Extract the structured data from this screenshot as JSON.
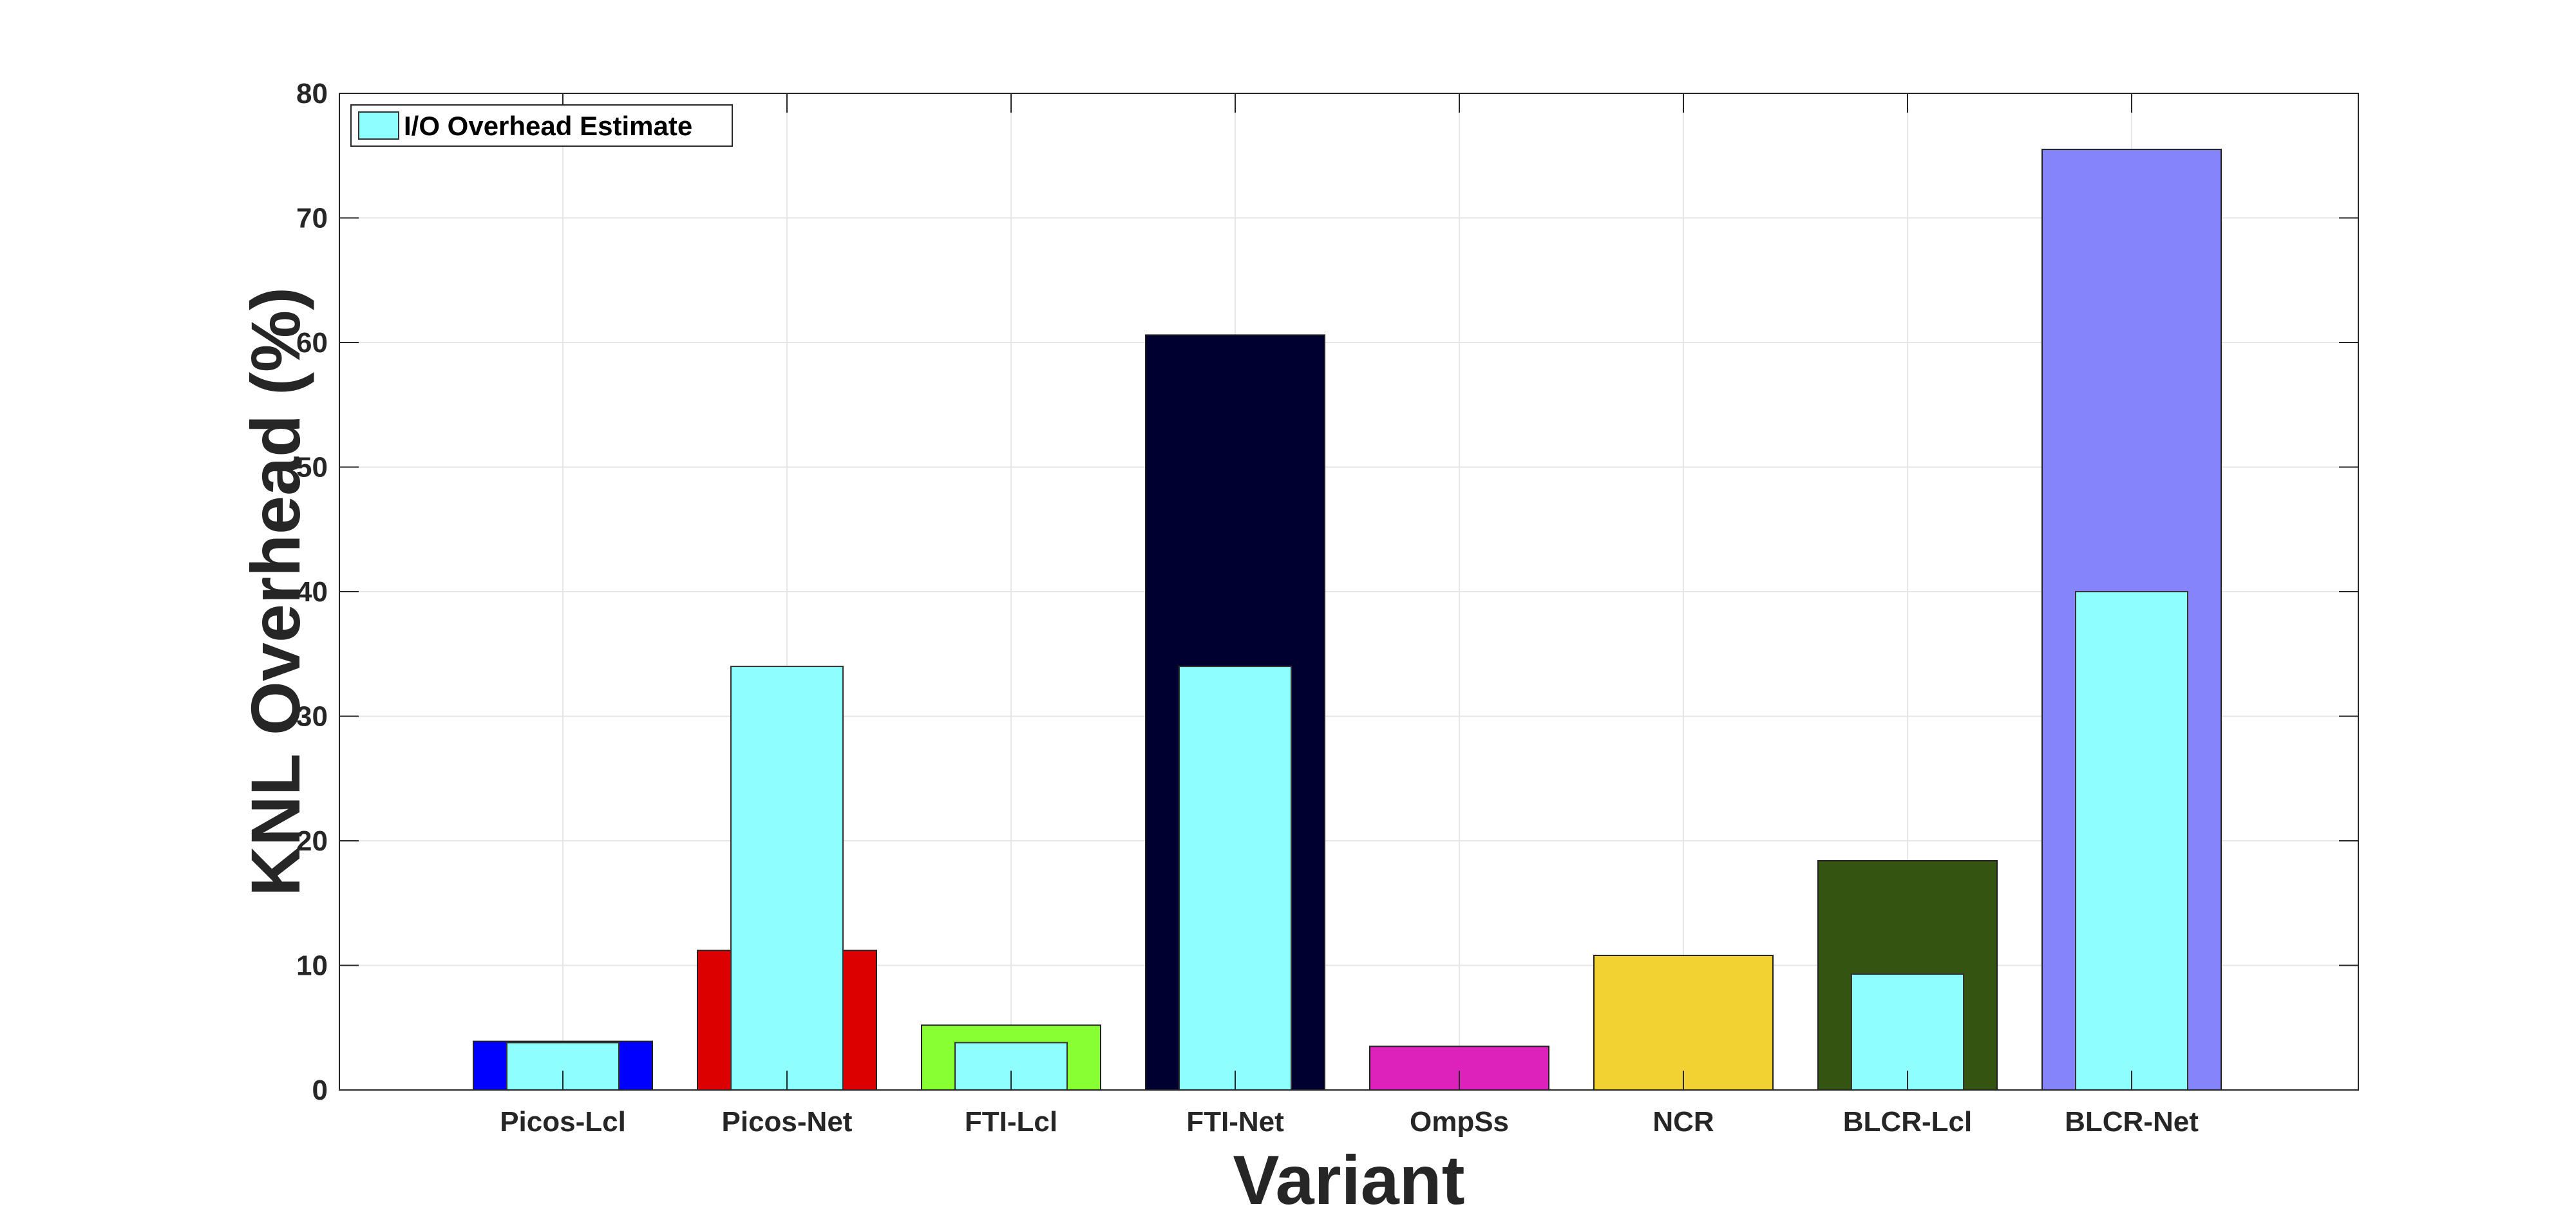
{
  "chart_data": {
    "type": "bar",
    "categories": [
      "Picos-Lcl",
      "Picos-Net",
      "FTI-Lcl",
      "FTI-Net",
      "OmpSs",
      "NCR",
      "BLCR-Lcl",
      "BLCR-Net"
    ],
    "series": [
      {
        "values": [
          3.9,
          11.2,
          5.2,
          60.6,
          3.5,
          10.8,
          18.4,
          75.5
        ],
        "colors": [
          "#0000ff",
          "#dd0000",
          "#88ff33",
          "#000030",
          "#dd22bb",
          "#f2d233",
          "#335511",
          "#8585f9"
        ]
      },
      {
        "name": "I/O Overhead Estimate",
        "values": [
          3.8,
          34.0,
          3.8,
          34.0,
          null,
          null,
          9.3,
          40.0
        ],
        "color": "#8ffefe"
      }
    ],
    "title": "",
    "xlabel": "Variant",
    "ylabel": "KNL Overhead (%)",
    "ylim": [
      0,
      80
    ],
    "yticks": [
      "0",
      "10",
      "20",
      "30",
      "40",
      "50",
      "60",
      "70",
      "80"
    ],
    "grid": true,
    "legend_position": "top-left"
  }
}
